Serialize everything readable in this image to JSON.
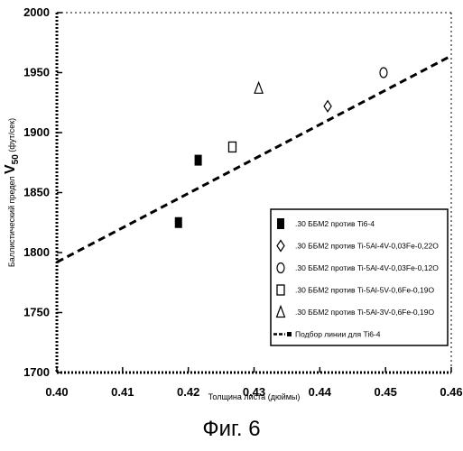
{
  "chart_data": {
    "type": "scatter",
    "xlabel": "Толщина листа (дюймы)",
    "ylabel": "Баллистический предел",
    "ylabel_v": "V",
    "ylabel_sub": "50",
    "ylabel_unit": "(фут/сек)",
    "xlim": [
      0.4,
      0.46
    ],
    "ylim": [
      1700,
      2000
    ],
    "x_ticks": [
      "0.40",
      "0.41",
      "0.42",
      "0.43",
      "0.44",
      "0.45",
      "0.46"
    ],
    "y_ticks": [
      "1700",
      "1750",
      "1800",
      "1850",
      "1900",
      "1950",
      "2000"
    ],
    "grid": false,
    "legend_position": "lower-right",
    "series": [
      {
        "name": ".30 ББМ2 против Ti6-4",
        "marker": "filled-square",
        "points": [
          {
            "x": 0.4185,
            "y": 1825
          },
          {
            "x": 0.4215,
            "y": 1877
          }
        ]
      },
      {
        "name": ".30 ББМ2 против Ti-5Al-4V-0,03Fe-0,22O",
        "marker": "diamond",
        "points": [
          {
            "x": 0.4412,
            "y": 1922
          }
        ]
      },
      {
        "name": ".30 ББМ2 против Ti-5Al-4V-0,03Fe-0,12O",
        "marker": "circle",
        "points": [
          {
            "x": 0.4497,
            "y": 1950
          }
        ]
      },
      {
        "name": ".30 ББМ2 против Ti-5Al-5V-0,6Fe-0,19O",
        "marker": "open-square",
        "points": [
          {
            "x": 0.4267,
            "y": 1888
          }
        ]
      },
      {
        "name": ".30 ББМ2 против Ti-5Al-3V-0,6Fe-0,19O",
        "marker": "triangle",
        "points": [
          {
            "x": 0.4307,
            "y": 1937
          }
        ]
      },
      {
        "name": "Подбор линии для Ti6-4",
        "marker": "dashed-line",
        "line": [
          {
            "x": 0.4,
            "y": 1792
          },
          {
            "x": 0.46,
            "y": 1964
          }
        ]
      }
    ]
  },
  "caption": "Фиг. 6"
}
